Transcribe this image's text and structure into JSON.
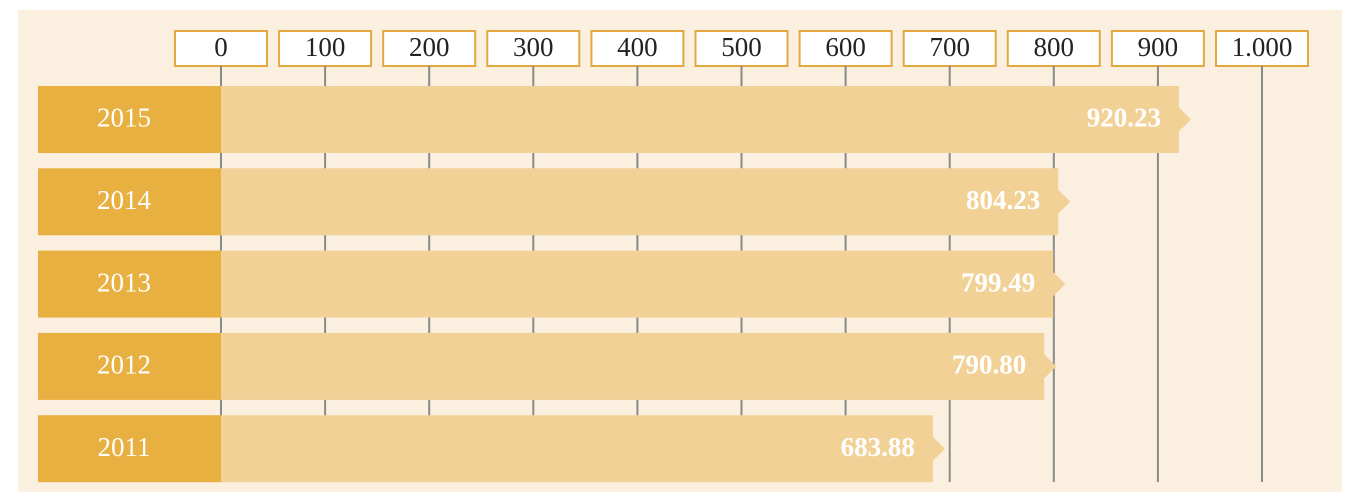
{
  "chart_data": {
    "type": "bar",
    "orientation": "horizontal",
    "categories": [
      "2015",
      "2014",
      "2013",
      "2012",
      "2011"
    ],
    "values": [
      920.23,
      804.23,
      799.49,
      790.8,
      683.88
    ],
    "value_labels": [
      "920.23",
      "804.23",
      "799.49",
      "790.80",
      "683.88"
    ],
    "color": "#f2d196",
    "category_color": "#e8b040",
    "xlim": [
      0,
      1000
    ],
    "xticks": [
      0,
      100,
      200,
      300,
      400,
      500,
      600,
      700,
      800,
      900,
      {
        "value": 1000,
        "label": "1.000"
      }
    ],
    "grid": true
  }
}
